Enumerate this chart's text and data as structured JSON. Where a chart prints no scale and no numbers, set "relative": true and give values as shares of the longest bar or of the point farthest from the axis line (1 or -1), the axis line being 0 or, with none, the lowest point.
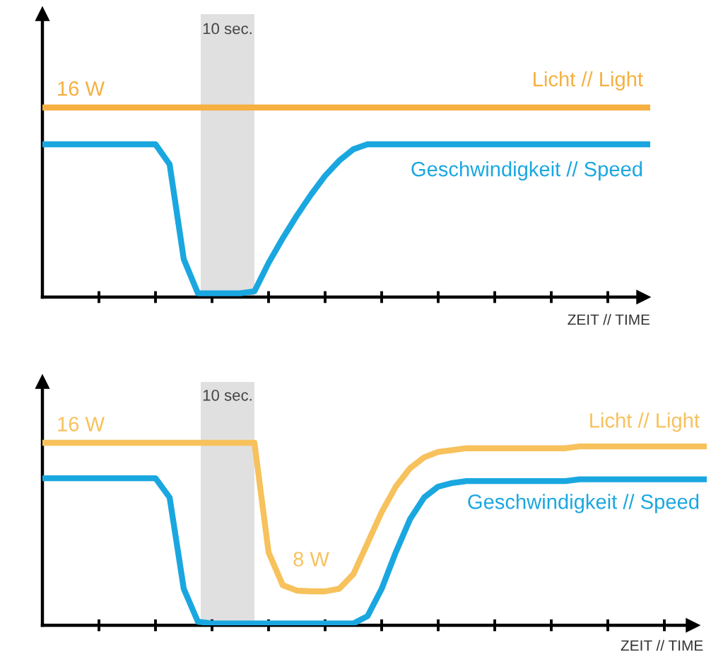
{
  "chart_data": [
    {
      "type": "line",
      "relative": true,
      "xlabel": "ZEIT // TIME",
      "tick_labels": false,
      "legend": false,
      "grid": false,
      "categories": [
        null,
        null,
        null,
        null,
        null,
        null,
        null,
        null,
        null,
        null,
        null,
        null,
        null,
        null,
        null,
        null,
        null,
        null,
        null,
        null,
        null,
        null,
        null,
        null,
        null,
        null,
        null,
        null,
        null,
        null,
        null,
        null,
        null,
        null,
        null,
        null,
        null,
        null,
        null,
        null,
        null,
        null,
        null,
        null
      ],
      "annotations": [
        "10 sec.",
        "16 W"
      ],
      "series": [
        {
          "name": "Licht // Light",
          "color": "#f5b041",
          "values": [
            1,
            1,
            1,
            1,
            1,
            1,
            1,
            1,
            1,
            1,
            1,
            1,
            1,
            1,
            1,
            1,
            1,
            1,
            1,
            1,
            1,
            1,
            1,
            1,
            1,
            1,
            1,
            1,
            1,
            1,
            1,
            1,
            1,
            1,
            1,
            1,
            1,
            1,
            1,
            1,
            1,
            1,
            1,
            1
          ]
        },
        {
          "name": "Geschwindigkeit // Speed",
          "color": "#1aa7e0",
          "values": [
            0.806,
            0.806,
            0.806,
            0.806,
            0.806,
            0.806,
            0.806,
            0.806,
            0.806,
            0.7,
            0.2,
            0.02,
            0.02,
            0.02,
            0.02,
            0.03,
            0.18,
            0.31,
            0.43,
            0.54,
            0.64,
            0.72,
            0.78,
            0.806,
            0.806,
            0.806,
            0.806,
            0.806,
            0.806,
            0.806,
            0.806,
            0.806,
            0.806,
            0.806,
            0.806,
            0.806,
            0.806,
            0.806,
            0.806,
            0.806,
            0.806,
            0.806,
            0.806,
            0.806
          ]
        }
      ]
    },
    {
      "type": "line",
      "relative": true,
      "xlabel": "ZEIT // TIME",
      "tick_labels": false,
      "legend": false,
      "grid": false,
      "categories": [
        null,
        null,
        null,
        null,
        null,
        null,
        null,
        null,
        null,
        null,
        null,
        null,
        null,
        null,
        null,
        null,
        null,
        null,
        null,
        null,
        null,
        null,
        null,
        null,
        null,
        null,
        null,
        null,
        null,
        null,
        null,
        null,
        null,
        null,
        null,
        null,
        null,
        null,
        null,
        null,
        null,
        null,
        null,
        null,
        null,
        null,
        null,
        null
      ],
      "annotations": [
        "10 sec.",
        "16 W",
        "8 W"
      ],
      "series": [
        {
          "name": "Licht // Light",
          "color": "#f7c15c",
          "values": [
            1,
            1,
            1,
            1,
            1,
            1,
            1,
            1,
            1,
            1,
            1,
            1,
            1,
            1,
            1,
            1,
            0.4,
            0.22,
            0.19,
            0.186,
            0.186,
            0.2,
            0.28,
            0.45,
            0.62,
            0.76,
            0.86,
            0.92,
            0.95,
            0.96,
            0.97,
            0.97,
            0.97,
            0.97,
            0.97,
            0.97,
            0.97,
            0.97,
            0.98,
            0.98,
            0.98,
            0.98,
            0.98,
            0.98,
            0.98,
            0.98,
            0.98,
            0.98
          ]
        },
        {
          "name": "Geschwindigkeit // Speed",
          "color": "#1aa7e0",
          "values": [
            0.806,
            0.806,
            0.806,
            0.806,
            0.806,
            0.806,
            0.806,
            0.806,
            0.806,
            0.7,
            0.2,
            0.02,
            0.01,
            0.01,
            0.01,
            0.01,
            0.01,
            0.01,
            0.01,
            0.01,
            0.01,
            0.01,
            0.01,
            0.05,
            0.2,
            0.4,
            0.58,
            0.7,
            0.76,
            0.78,
            0.79,
            0.79,
            0.79,
            0.79,
            0.79,
            0.79,
            0.79,
            0.79,
            0.8,
            0.8,
            0.8,
            0.8,
            0.8,
            0.8,
            0.8,
            0.8,
            0.8,
            0.8
          ]
        }
      ]
    }
  ]
}
